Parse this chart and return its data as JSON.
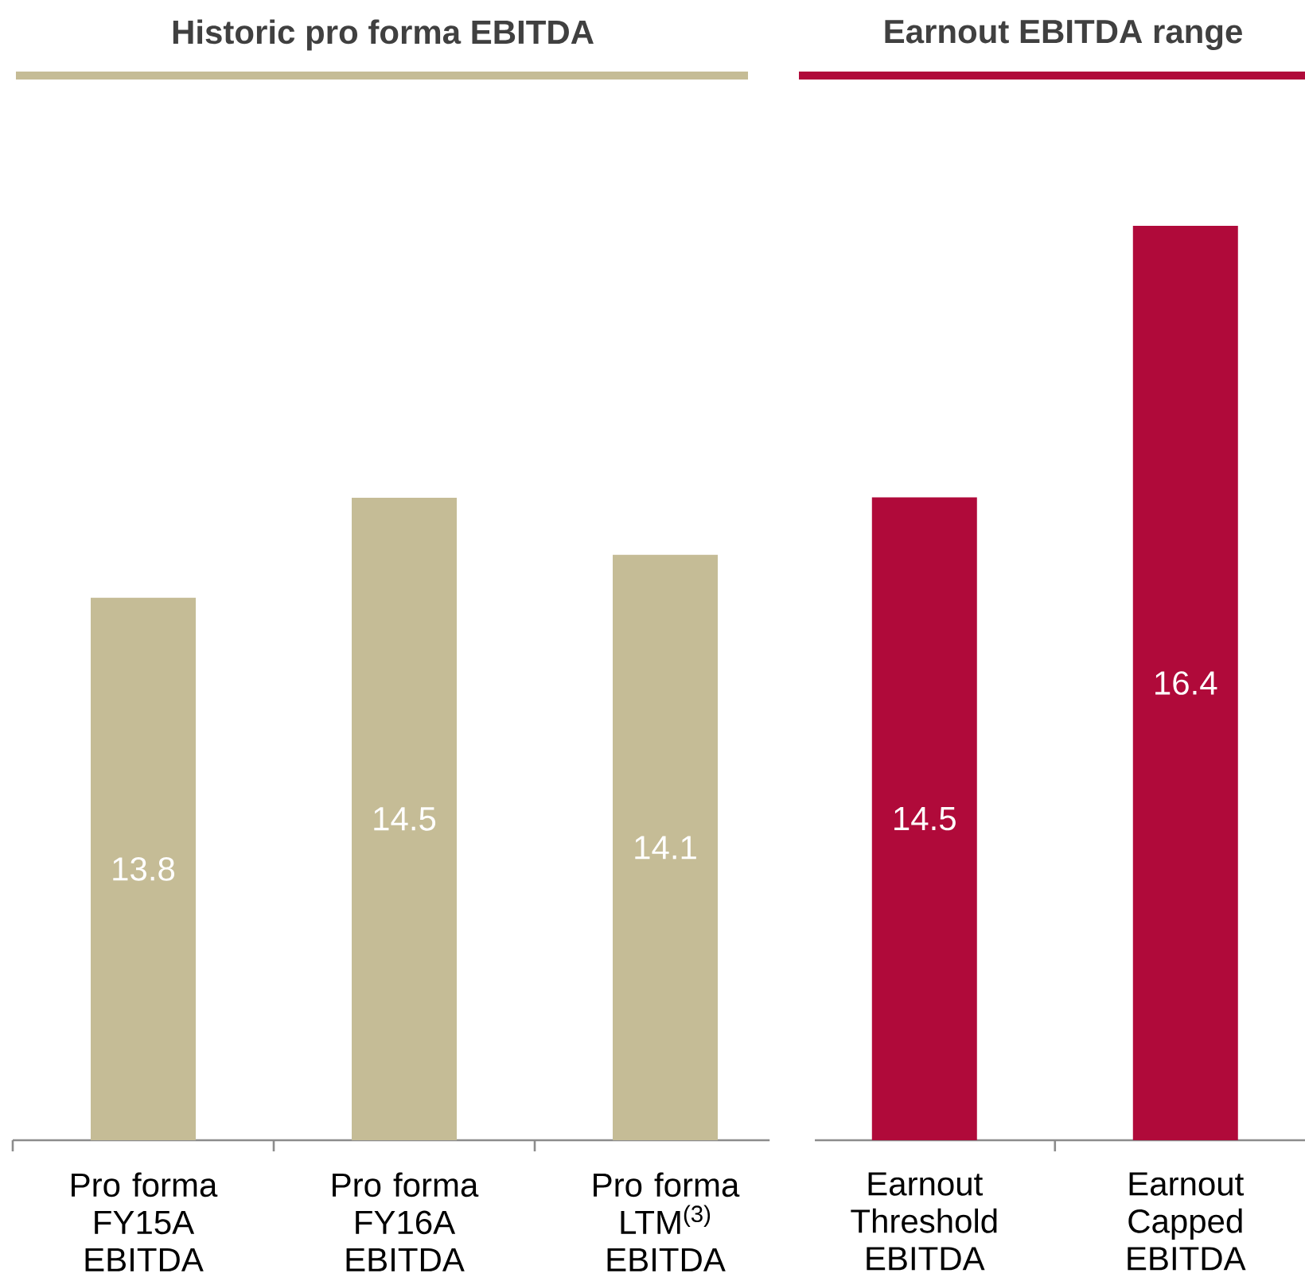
{
  "chart_data": [
    {
      "type": "bar",
      "title": "Historic pro forma EBITDA",
      "categories": [
        "Pro forma FY15A EBITDA",
        "Pro forma FY16A EBITDA",
        "Pro forma LTM$^{(3)}$ EBITDA"
      ],
      "values": [
        13.8,
        14.5,
        14.1
      ],
      "color": "#c5bc96",
      "data_labels": true,
      "ylim": [
        10,
        14.5
      ],
      "tick_labels": "x"
    },
    {
      "type": "bar",
      "title": "Earnout EBITDA range",
      "categories": [
        "Earnout Threshold EBITDA",
        "Earnout Capped EBITDA"
      ],
      "values": [
        14.5,
        16.4
      ],
      "color": "#b00a3a",
      "data_labels": true,
      "ylim": [
        10,
        16.4
      ],
      "tick_labels": "x"
    }
  ]
}
